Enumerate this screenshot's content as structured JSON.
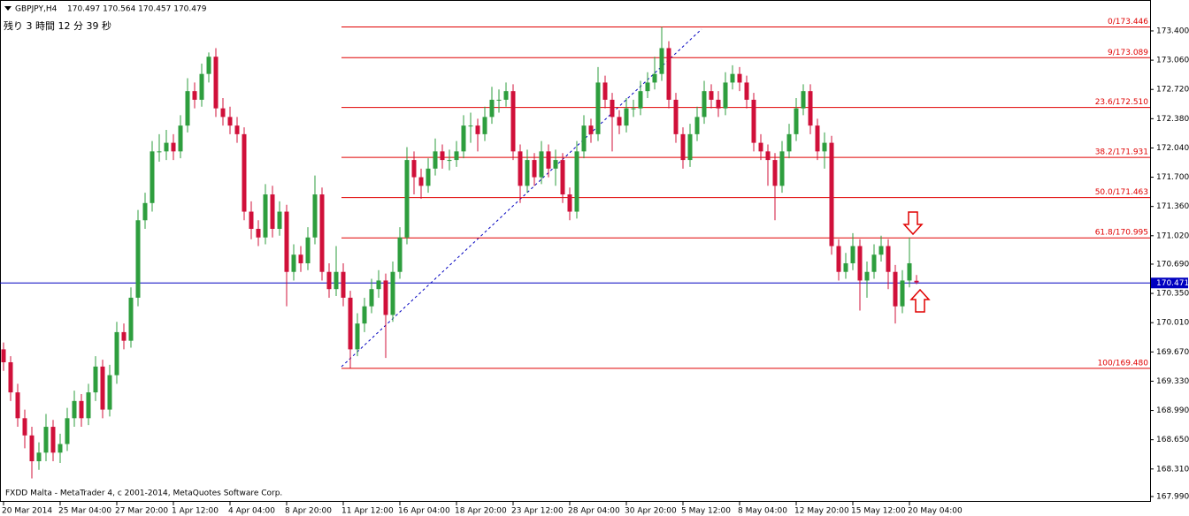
{
  "chart_data": {
    "type": "candlestick",
    "symbol": "GBPJPY,H4",
    "ohlc_header": "170.497 170.564 170.457 170.479",
    "timer": "残り 3 時間 12 分 39 秒",
    "footer": "FXDD Malta - MetaTrader 4, c 2001-2014, MetaQuotes Software Corp.",
    "up_color": "#2e9e3e",
    "down_color": "#d0103a",
    "ylim": [
      167.928,
      173.759
    ],
    "yticks": [
      {
        "value": 173.4,
        "label": "173.400"
      },
      {
        "value": 173.06,
        "label": "173.060"
      },
      {
        "value": 172.72,
        "label": "172.720"
      },
      {
        "value": 172.38,
        "label": "172.380"
      },
      {
        "value": 172.04,
        "label": "172.040"
      },
      {
        "value": 171.7,
        "label": "171.700"
      },
      {
        "value": 171.36,
        "label": "171.360"
      },
      {
        "value": 171.02,
        "label": "171.020"
      },
      {
        "value": 170.69,
        "label": "170.690"
      },
      {
        "value": 170.35,
        "label": "170.350"
      },
      {
        "value": 170.01,
        "label": "170.010"
      },
      {
        "value": 169.67,
        "label": "169.670"
      },
      {
        "value": 169.33,
        "label": "169.330"
      },
      {
        "value": 168.99,
        "label": "168.990"
      },
      {
        "value": 168.65,
        "label": "168.650"
      },
      {
        "value": 168.31,
        "label": "168.310"
      },
      {
        "value": 167.99,
        "label": "167.990"
      }
    ],
    "fib_levels": [
      {
        "value": 173.446,
        "label": "0/173.446"
      },
      {
        "value": 173.089,
        "label": "9/173.089"
      },
      {
        "value": 172.51,
        "label": "23.6/172.510"
      },
      {
        "value": 171.931,
        "label": "38.2/171.931"
      },
      {
        "value": 171.463,
        "label": "50.0/171.463"
      },
      {
        "value": 170.995,
        "label": "61.8/170.995"
      },
      {
        "value": 169.48,
        "label": "100/169.480"
      }
    ],
    "current_price": 170.471,
    "categories": [
      "20 Mar 2014",
      null,
      null,
      null,
      null,
      null,
      null,
      null,
      "25 Mar 04:00",
      null,
      null,
      null,
      null,
      null,
      null,
      null,
      "27 Mar 20:00",
      null,
      null,
      null,
      null,
      null,
      null,
      null,
      "1 Apr 12:00",
      null,
      null,
      null,
      null,
      null,
      null,
      null,
      "4 Apr 04:00",
      null,
      null,
      null,
      null,
      null,
      null,
      null,
      "8 Apr 20:00",
      null,
      null,
      null,
      null,
      null,
      null,
      null,
      "11 Apr 12:00",
      null,
      null,
      null,
      null,
      null,
      null,
      null,
      "16 Apr 04:00",
      null,
      null,
      null,
      null,
      null,
      null,
      null,
      "18 Apr 20:00",
      null,
      null,
      null,
      null,
      null,
      null,
      null,
      "23 Apr 12:00",
      null,
      null,
      null,
      null,
      null,
      null,
      null,
      "28 Apr 04:00",
      null,
      null,
      null,
      null,
      null,
      null,
      null,
      "30 Apr 20:00",
      null,
      null,
      null,
      null,
      null,
      null,
      null,
      "5 May 12:00",
      null,
      null,
      null,
      null,
      null,
      null,
      null,
      "8 May 04:00",
      null,
      null,
      null,
      null,
      null,
      null,
      null,
      "12 May 20:00",
      null,
      null,
      null,
      null,
      null,
      null,
      null,
      "15 May 12:00",
      null,
      null,
      null,
      null,
      null,
      null,
      null,
      "20 May 04:00",
      null
    ],
    "ohlc": [
      [
        169.7,
        169.78,
        169.45,
        169.55
      ],
      [
        169.55,
        169.62,
        169.1,
        169.2
      ],
      [
        169.2,
        169.3,
        168.8,
        168.9
      ],
      [
        168.9,
        169.0,
        168.55,
        168.7
      ],
      [
        168.7,
        168.8,
        168.2,
        168.4
      ],
      [
        168.4,
        168.62,
        168.3,
        168.5
      ],
      [
        168.5,
        168.95,
        168.4,
        168.8
      ],
      [
        168.8,
        168.88,
        168.4,
        168.5
      ],
      [
        168.5,
        168.72,
        168.38,
        168.6
      ],
      [
        168.6,
        169.02,
        168.52,
        168.9
      ],
      [
        168.9,
        169.22,
        168.8,
        169.1
      ],
      [
        169.1,
        169.18,
        168.8,
        168.9
      ],
      [
        168.9,
        169.3,
        168.82,
        169.2
      ],
      [
        169.2,
        169.62,
        169.1,
        169.5
      ],
      [
        169.5,
        169.58,
        168.9,
        169.0
      ],
      [
        169.0,
        169.52,
        168.92,
        169.4
      ],
      [
        169.4,
        170.02,
        169.3,
        169.9
      ],
      [
        169.9,
        170.0,
        169.7,
        169.8
      ],
      [
        169.8,
        170.42,
        169.72,
        170.3
      ],
      [
        170.3,
        171.32,
        170.2,
        171.2
      ],
      [
        171.2,
        171.52,
        171.1,
        171.4
      ],
      [
        171.4,
        172.12,
        171.3,
        172.0
      ],
      [
        172.0,
        172.2,
        171.88,
        172.0
      ],
      [
        172.0,
        172.25,
        171.9,
        172.1
      ],
      [
        172.1,
        172.2,
        171.9,
        172.0
      ],
      [
        172.0,
        172.42,
        171.92,
        172.3
      ],
      [
        172.3,
        172.85,
        172.22,
        172.7
      ],
      [
        172.7,
        172.8,
        172.5,
        172.6
      ],
      [
        172.6,
        173.02,
        172.52,
        172.9
      ],
      [
        172.9,
        173.15,
        172.8,
        173.1
      ],
      [
        173.1,
        173.2,
        172.4,
        172.5
      ],
      [
        172.5,
        172.62,
        172.3,
        172.4
      ],
      [
        172.4,
        172.52,
        172.2,
        172.3
      ],
      [
        172.3,
        172.4,
        172.1,
        172.2
      ],
      [
        172.2,
        172.28,
        171.2,
        171.3
      ],
      [
        171.3,
        171.42,
        170.98,
        171.1
      ],
      [
        171.1,
        171.2,
        170.9,
        171.0
      ],
      [
        171.0,
        171.62,
        170.92,
        171.5
      ],
      [
        171.5,
        171.6,
        171.0,
        171.1
      ],
      [
        171.1,
        171.42,
        171.02,
        171.3
      ],
      [
        171.3,
        171.38,
        170.2,
        170.6
      ],
      [
        170.6,
        170.92,
        170.5,
        170.8
      ],
      [
        170.8,
        170.9,
        170.6,
        170.7
      ],
      [
        170.7,
        171.12,
        170.62,
        171.0
      ],
      [
        171.0,
        171.72,
        170.92,
        171.5
      ],
      [
        171.5,
        171.58,
        170.5,
        170.6
      ],
      [
        170.6,
        170.7,
        170.3,
        170.4
      ],
      [
        170.4,
        170.9,
        170.32,
        170.6
      ],
      [
        170.6,
        170.7,
        170.2,
        170.3
      ],
      [
        170.3,
        170.38,
        169.48,
        169.7
      ],
      [
        169.7,
        170.12,
        169.62,
        170.0
      ],
      [
        170.0,
        170.3,
        169.9,
        170.2
      ],
      [
        170.2,
        170.52,
        170.12,
        170.4
      ],
      [
        170.4,
        170.62,
        170.3,
        170.5
      ],
      [
        170.5,
        170.58,
        169.6,
        170.1
      ],
      [
        170.1,
        170.72,
        170.02,
        170.6
      ],
      [
        170.6,
        171.12,
        170.52,
        171.0
      ],
      [
        171.0,
        172.05,
        170.92,
        171.9
      ],
      [
        171.9,
        172.0,
        171.5,
        171.7
      ],
      [
        171.7,
        171.8,
        171.45,
        171.6
      ],
      [
        171.6,
        171.92,
        171.52,
        171.8
      ],
      [
        171.8,
        172.15,
        171.72,
        172.0
      ],
      [
        172.0,
        172.08,
        171.8,
        171.9
      ],
      [
        171.9,
        172.02,
        171.78,
        171.9
      ],
      [
        171.9,
        172.12,
        171.82,
        172.0
      ],
      [
        172.0,
        172.42,
        171.92,
        172.3
      ],
      [
        172.3,
        172.45,
        172.1,
        172.3
      ],
      [
        172.3,
        172.38,
        172.0,
        172.2
      ],
      [
        172.2,
        172.52,
        172.12,
        172.4
      ],
      [
        172.4,
        172.75,
        172.32,
        172.6
      ],
      [
        172.6,
        172.72,
        172.45,
        172.6
      ],
      [
        172.6,
        172.8,
        172.52,
        172.7
      ],
      [
        172.7,
        172.78,
        171.9,
        172.0
      ],
      [
        172.0,
        172.08,
        171.4,
        171.6
      ],
      [
        171.6,
        172.02,
        171.52,
        171.9
      ],
      [
        171.9,
        171.98,
        171.6,
        171.7
      ],
      [
        171.7,
        172.12,
        171.62,
        172.0
      ],
      [
        172.0,
        172.08,
        171.7,
        171.8
      ],
      [
        171.8,
        172.02,
        171.6,
        171.9
      ],
      [
        171.9,
        171.98,
        171.4,
        171.5
      ],
      [
        171.5,
        171.58,
        171.2,
        171.3
      ],
      [
        171.3,
        172.12,
        171.22,
        172.0
      ],
      [
        172.0,
        172.42,
        171.92,
        172.3
      ],
      [
        172.3,
        172.38,
        172.1,
        172.2
      ],
      [
        172.2,
        172.98,
        172.12,
        172.8
      ],
      [
        172.8,
        172.88,
        172.5,
        172.6
      ],
      [
        172.6,
        172.68,
        172.0,
        172.4
      ],
      [
        172.4,
        172.48,
        172.2,
        172.3
      ],
      [
        172.3,
        172.62,
        172.22,
        172.5
      ],
      [
        172.5,
        172.6,
        172.4,
        172.5
      ],
      [
        172.5,
        172.82,
        172.42,
        172.7
      ],
      [
        172.7,
        172.92,
        172.62,
        172.8
      ],
      [
        172.8,
        173.1,
        172.72,
        172.9
      ],
      [
        172.9,
        173.446,
        172.82,
        173.2
      ],
      [
        173.2,
        173.28,
        172.5,
        172.6
      ],
      [
        172.6,
        172.68,
        172.1,
        172.2
      ],
      [
        172.2,
        172.28,
        171.8,
        171.9
      ],
      [
        171.9,
        172.32,
        171.82,
        172.2
      ],
      [
        172.2,
        172.52,
        172.12,
        172.4
      ],
      [
        172.4,
        172.82,
        172.32,
        172.7
      ],
      [
        172.7,
        172.78,
        172.5,
        172.6
      ],
      [
        172.6,
        172.7,
        172.4,
        172.5
      ],
      [
        172.5,
        172.92,
        172.42,
        172.8
      ],
      [
        172.8,
        173.0,
        172.72,
        172.9
      ],
      [
        172.9,
        172.98,
        172.7,
        172.8
      ],
      [
        172.8,
        172.88,
        172.5,
        172.6
      ],
      [
        172.6,
        172.68,
        172.0,
        172.1
      ],
      [
        172.1,
        172.2,
        171.9,
        172.0
      ],
      [
        172.0,
        172.08,
        171.6,
        171.9
      ],
      [
        171.9,
        171.98,
        171.2,
        171.6
      ],
      [
        171.6,
        172.12,
        171.52,
        172.0
      ],
      [
        172.0,
        172.32,
        171.92,
        172.2
      ],
      [
        172.2,
        172.62,
        172.12,
        172.5
      ],
      [
        172.5,
        172.78,
        172.42,
        172.7
      ],
      [
        172.7,
        172.78,
        172.2,
        172.3
      ],
      [
        172.3,
        172.38,
        171.9,
        172.0
      ],
      [
        172.0,
        172.22,
        171.8,
        172.1
      ],
      [
        172.1,
        172.18,
        170.8,
        170.9
      ],
      [
        170.9,
        170.98,
        170.5,
        170.6
      ],
      [
        170.6,
        170.82,
        170.52,
        170.7
      ],
      [
        170.7,
        171.05,
        170.62,
        170.9
      ],
      [
        170.9,
        170.98,
        170.15,
        170.5
      ],
      [
        170.5,
        170.72,
        170.3,
        170.6
      ],
      [
        170.6,
        170.92,
        170.52,
        170.8
      ],
      [
        170.8,
        171.02,
        170.72,
        170.9
      ],
      [
        170.9,
        170.98,
        170.4,
        170.6
      ],
      [
        170.6,
        170.68,
        170.0,
        170.2
      ],
      [
        170.2,
        170.62,
        170.12,
        170.5
      ],
      [
        170.5,
        171.0,
        170.42,
        170.7
      ],
      [
        170.497,
        170.564,
        170.457,
        170.479
      ]
    ]
  }
}
